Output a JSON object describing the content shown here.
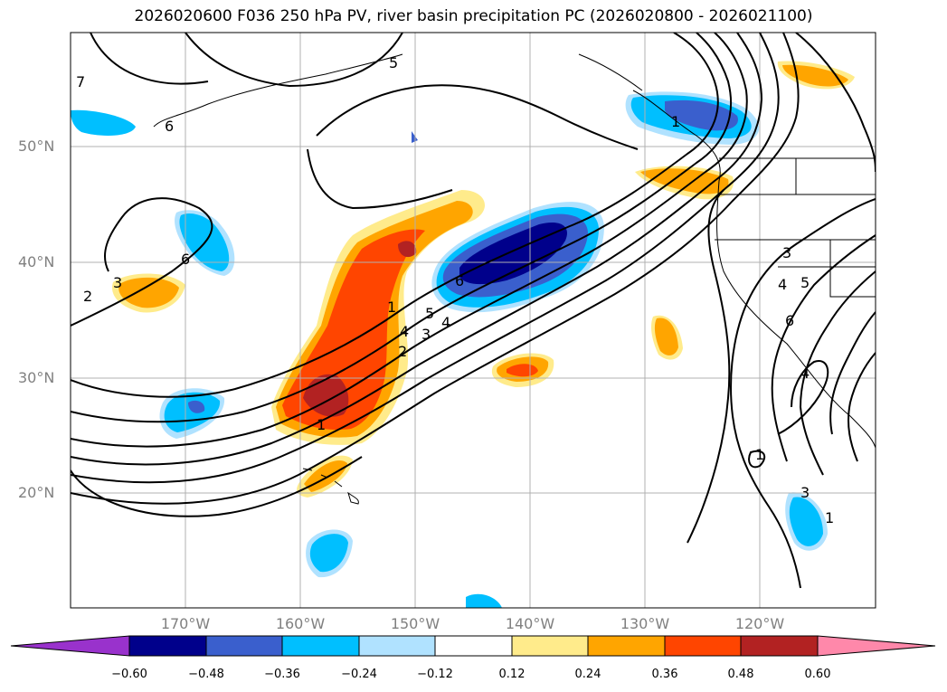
{
  "title": "2026020600 F036 250 hPa PV, river basin precipitation PC (2026020800 - 2026021100)",
  "lat_labels": [
    "50°N",
    "40°N",
    "30°N",
    "20°N"
  ],
  "lon_labels": [
    "170°W",
    "160°W",
    "150°W",
    "140°W",
    "130°W",
    "120°W"
  ],
  "contour_labels": [
    "7",
    "6",
    "6",
    "6",
    "2",
    "3",
    "1",
    "4",
    "5",
    "4",
    "3",
    "2",
    "1",
    "1",
    "3",
    "4",
    "5",
    "6",
    "4",
    "1",
    "3",
    "1",
    "5"
  ],
  "colorbar": {
    "ticks": [
      "−0.60",
      "−0.48",
      "−0.36",
      "−0.24",
      "−0.12",
      "0.12",
      "0.24",
      "0.36",
      "0.48",
      "0.60"
    ],
    "colors": [
      "#9932cc",
      "#00008b",
      "#3a5fcd",
      "#00bfff",
      "#b0e2ff",
      "#ffffff",
      "#ffeb8b",
      "#ffa500",
      "#ff4500",
      "#b22222",
      "#ff88aa"
    ]
  }
}
